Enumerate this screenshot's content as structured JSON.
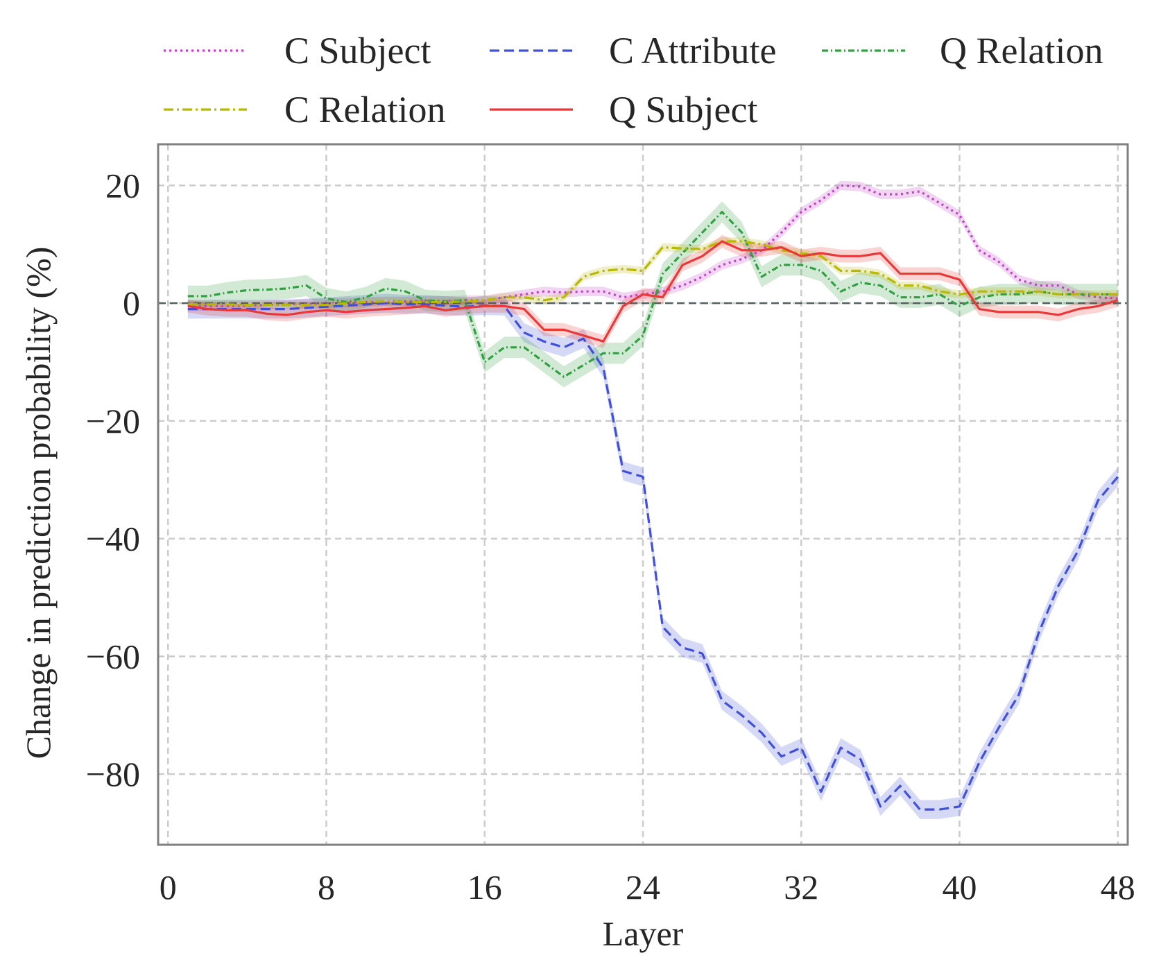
{
  "chart_data": {
    "type": "line",
    "xlabel": "Layer",
    "ylabel": "Change in prediction probability (%)",
    "xlim": [
      -0.5,
      48.5
    ],
    "ylim": [
      -92,
      27
    ],
    "xticks": [
      0,
      8,
      16,
      24,
      32,
      40,
      48
    ],
    "yticks": [
      20,
      0,
      -20,
      -40,
      -60,
      -80
    ],
    "xtick_labels": [
      "0",
      "8",
      "16",
      "24",
      "32",
      "40",
      "48"
    ],
    "ytick_labels": [
      "20",
      "0",
      "−20",
      "−40",
      "−60",
      "−80"
    ],
    "grid": true,
    "legend_position": "top, above plot",
    "reference_line": 0,
    "x": [
      1,
      2,
      3,
      4,
      5,
      6,
      7,
      8,
      9,
      10,
      11,
      12,
      13,
      14,
      15,
      16,
      17,
      18,
      19,
      20,
      21,
      22,
      23,
      24,
      25,
      26,
      27,
      28,
      29,
      30,
      31,
      32,
      33,
      34,
      35,
      36,
      37,
      38,
      39,
      40,
      41,
      42,
      43,
      44,
      45,
      46,
      47,
      48
    ],
    "series": [
      {
        "name": "C Subject",
        "color": "#c040c8",
        "dash": "3,5",
        "band": 0.8,
        "values": [
          -0.5,
          -0.5,
          -0.5,
          -0.4,
          -0.3,
          -0.2,
          -0.1,
          0,
          0.1,
          0.2,
          0.3,
          0.3,
          0.4,
          0.4,
          0.5,
          0.5,
          1.0,
          1.5,
          2.0,
          1.8,
          2.0,
          2.0,
          1.0,
          1.5,
          2.0,
          3.0,
          4.5,
          6.5,
          7.5,
          9.0,
          12.0,
          15.5,
          17.5,
          20.0,
          19.8,
          18.5,
          18.5,
          19.0,
          17.0,
          15.0,
          9.0,
          7.0,
          4.0,
          3.0,
          3.0,
          1.5,
          1.0,
          0.8
        ]
      },
      {
        "name": "C Attribute",
        "color": "#4050d8",
        "dash": "14,7",
        "band": 1.6,
        "values": [
          -1.0,
          -1.0,
          -1.0,
          -1.0,
          -1.0,
          -1.0,
          -0.8,
          -0.6,
          -0.4,
          -0.2,
          0,
          -0.2,
          -0.2,
          -0.4,
          -0.6,
          -0.4,
          -0.5,
          -5.0,
          -6.5,
          -7.5,
          -6.0,
          -11.0,
          -28.5,
          -29.5,
          -55.0,
          -58.5,
          -59.5,
          -67.5,
          -70.0,
          -73.0,
          -77.0,
          -75.5,
          -83.0,
          -75.5,
          -77.5,
          -85.5,
          -82.0,
          -86.0,
          -86.0,
          -85.5,
          -78.0,
          -72.0,
          -66.5,
          -56.0,
          -48.0,
          -42.0,
          -33.5,
          -29.5
        ]
      },
      {
        "name": "Q Relation",
        "color": "#30a040",
        "dash": "9,4,2,4",
        "band": 1.8,
        "values": [
          1.2,
          1.2,
          1.8,
          2.2,
          2.3,
          2.5,
          3.0,
          0.8,
          0.2,
          1.0,
          2.5,
          2.0,
          0.5,
          0.3,
          0.5,
          -10.0,
          -7.5,
          -7.5,
          -10.0,
          -12.5,
          -10.5,
          -8.5,
          -8.5,
          -5.5,
          5.0,
          8.5,
          12.0,
          15.5,
          12.0,
          4.5,
          6.5,
          6.5,
          5.5,
          2.0,
          3.5,
          3.0,
          1.0,
          1.0,
          1.5,
          -0.5,
          1.0,
          1.5,
          1.5,
          2.0,
          1.5,
          1.5,
          1.5,
          1.5
        ]
      },
      {
        "name": "C Relation",
        "color": "#b8b800",
        "dash": "14,5,3,5",
        "band": 0.7,
        "values": [
          -0.2,
          -0.2,
          -0.2,
          -0.3,
          -0.3,
          -0.3,
          -0.3,
          -0.3,
          0,
          0.2,
          0.3,
          0.2,
          0.2,
          0.2,
          0.3,
          0.5,
          1.0,
          1.0,
          0.5,
          1.0,
          4.5,
          5.5,
          5.8,
          5.5,
          9.5,
          9.3,
          9.2,
          10.5,
          10.5,
          10.0,
          9.0,
          8.5,
          8.0,
          5.5,
          5.5,
          5.0,
          3.0,
          3.0,
          2.0,
          1.5,
          2.0,
          2.0,
          2.0,
          2.0,
          1.5,
          1.5,
          1.5,
          1.5
        ]
      },
      {
        "name": "Q Subject",
        "color": "#e83838",
        "dash": "",
        "band": 1.1,
        "values": [
          -0.5,
          -1.0,
          -1.2,
          -1.2,
          -1.8,
          -2.0,
          -1.5,
          -1.2,
          -1.5,
          -1.2,
          -1.0,
          -0.8,
          -0.5,
          -1.2,
          -0.8,
          -0.5,
          -0.5,
          -1.0,
          -4.5,
          -4.5,
          -5.5,
          -6.5,
          -0.5,
          1.5,
          1.0,
          6.5,
          8.0,
          10.5,
          9.0,
          9.0,
          9.5,
          8.0,
          8.5,
          8.0,
          8.0,
          8.5,
          5.0,
          5.0,
          5.0,
          4.0,
          -1.0,
          -1.5,
          -1.5,
          -1.5,
          -2.0,
          -1.0,
          -0.5,
          0.5
        ]
      }
    ],
    "legend_rows": [
      [
        "C Subject",
        "C Attribute",
        "Q Relation"
      ],
      [
        "C Relation",
        "Q Subject"
      ]
    ]
  }
}
